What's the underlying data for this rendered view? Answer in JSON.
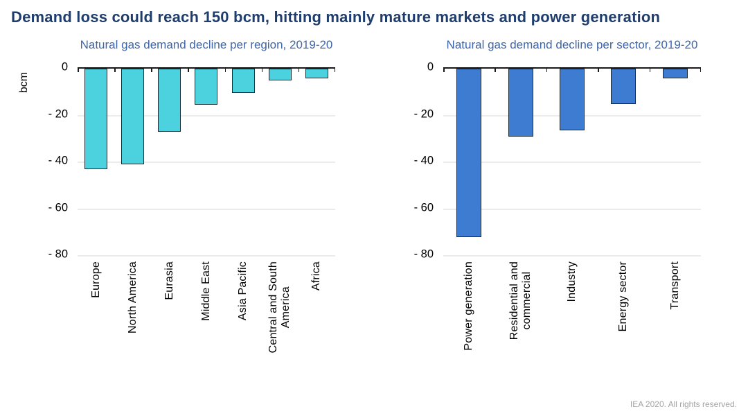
{
  "page": {
    "title": "Demand loss could reach 150 bcm, hitting mainly mature markets and power generation",
    "footer": "IEA 2020. All rights reserved."
  },
  "colors": {
    "title": "#1f3d6d",
    "subtitle": "#3d66ab",
    "region_bar": "#4bd2de",
    "sector_bar": "#3e7cd1",
    "bar_outline": "#1c2b33",
    "gridline": "#ebebeb",
    "axis": "#1a1a1a",
    "footer": "#a3a3a3"
  },
  "chart_data": [
    {
      "id": "region",
      "type": "bar",
      "title": "Natural gas demand decline per region, 2019-20",
      "ylabel": "bcm",
      "categories": [
        "Europe",
        "North America",
        "Eurasia",
        "Middle East",
        "Asia Pacific",
        "Central and South\nAmerica",
        "Africa"
      ],
      "values": [
        -43,
        -41,
        -27,
        -15.5,
        -10.5,
        -5,
        -4
      ],
      "ylim": [
        -80,
        0
      ],
      "yticks": [
        0,
        -20,
        -40,
        -60,
        -80
      ],
      "ytick_labels": [
        "0",
        "- 20",
        "- 40",
        "- 60",
        "- 80"
      ],
      "bar_color": "#4bd2de",
      "grid": true,
      "legend": "none"
    },
    {
      "id": "sector",
      "type": "bar",
      "title": "Natural gas demand decline per sector, 2019-20",
      "ylabel": "",
      "categories": [
        "Power generation",
        "Residential and\ncommercial",
        "Industry",
        "Energy sector",
        "Transport"
      ],
      "values": [
        -72,
        -29,
        -26.5,
        -15,
        -4
      ],
      "ylim": [
        -80,
        0
      ],
      "yticks": [
        0,
        -20,
        -40,
        -60,
        -80
      ],
      "ytick_labels": [
        "0",
        "- 20",
        "- 40",
        "- 60",
        "- 80"
      ],
      "bar_color": "#3e7cd1",
      "grid": true,
      "legend": "none"
    }
  ]
}
